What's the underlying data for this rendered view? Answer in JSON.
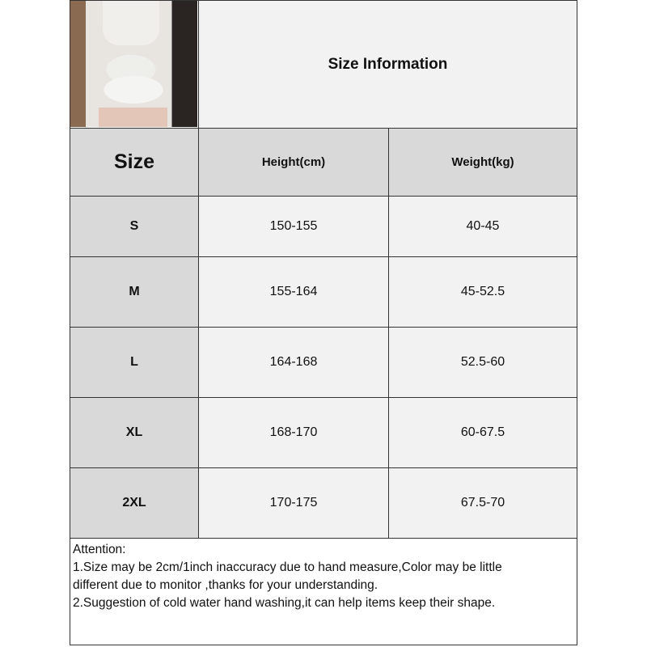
{
  "title": "Size Information",
  "headers": [
    "Size",
    "Height(cm)",
    "Weight(kg)"
  ],
  "rows": [
    {
      "size": "S",
      "height": "150-155",
      "weight": "40-45"
    },
    {
      "size": "M",
      "height": "155-164",
      "weight": "45-52.5"
    },
    {
      "size": "L",
      "height": "164-168",
      "weight": "52.5-60"
    },
    {
      "size": "XL",
      "height": "168-170",
      "weight": "60-67.5"
    },
    {
      "size": "2XL",
      "height": "170-175",
      "weight": "67.5-70"
    }
  ],
  "attention": {
    "heading": "Attention:",
    "lines": [
      "1.Size may be 2cm/1inch inaccuracy due to hand measure,Color may be little",
      "different due to monitor ,thanks for your understanding.",
      "2.Suggestion of cold water hand washing,it can help items keep their shape."
    ]
  },
  "colors": {
    "header_gray": "#d9d9d9",
    "cell_light": "#f2f2f2",
    "border": "#333333"
  }
}
